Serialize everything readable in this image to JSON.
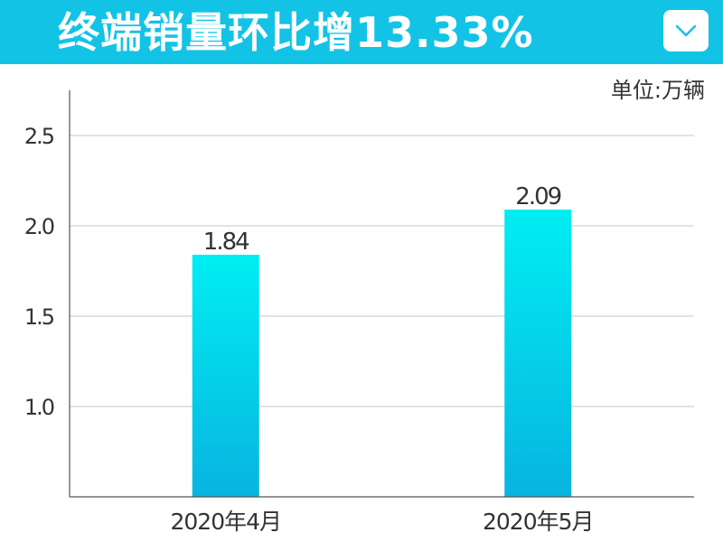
{
  "header": {
    "title": "终端销量环比增13.33%",
    "background_color": "#12c3e6",
    "collapse_icon": "chevron-down-icon"
  },
  "unit_label": "单位:万辆",
  "chart_data": {
    "type": "bar",
    "title": "终端销量环比增13.33%",
    "categories": [
      "2020年4月",
      "2020年5月"
    ],
    "values": [
      1.84,
      2.09
    ],
    "value_labels": [
      "1.84",
      "2.09"
    ],
    "yticks": [
      1.0,
      1.5,
      2.0,
      2.5
    ],
    "ytick_labels": [
      "1.0",
      "1.5",
      "2.0",
      "2.5"
    ],
    "ylim": [
      0.5,
      2.75
    ],
    "grid": true,
    "unit": "单位:万辆",
    "bar_color_top": "#00eef2",
    "bar_color_bottom": "#08b4e0"
  }
}
